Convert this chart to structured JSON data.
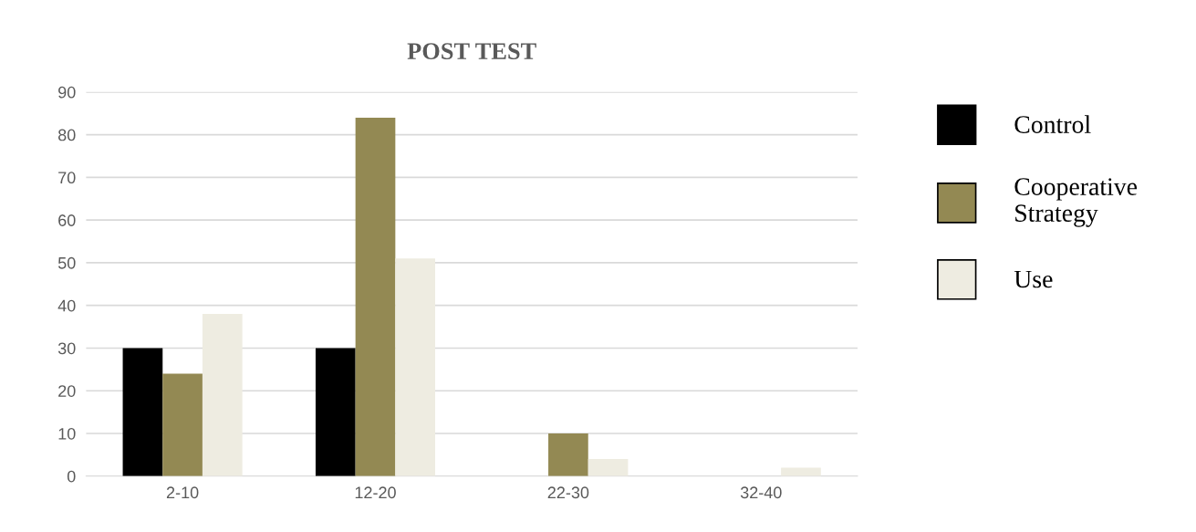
{
  "chart_data": {
    "type": "bar",
    "title": "POST TEST",
    "categories": [
      "2-10",
      "12-20",
      "22-30",
      "32-40"
    ],
    "series": [
      {
        "name": "Control",
        "color": "#000000",
        "values": [
          30,
          30,
          0,
          0
        ]
      },
      {
        "name": "Cooperative\nStrategy",
        "color": "#938953",
        "values": [
          24,
          84,
          10,
          0
        ]
      },
      {
        "name": "Use",
        "color": "#eeece1",
        "values": [
          38,
          51,
          4,
          2
        ]
      }
    ],
    "ylim": [
      0,
      90
    ],
    "yticks": [
      0,
      10,
      20,
      30,
      40,
      50,
      60,
      70,
      80,
      90
    ],
    "grid": "y",
    "legend": "right"
  }
}
